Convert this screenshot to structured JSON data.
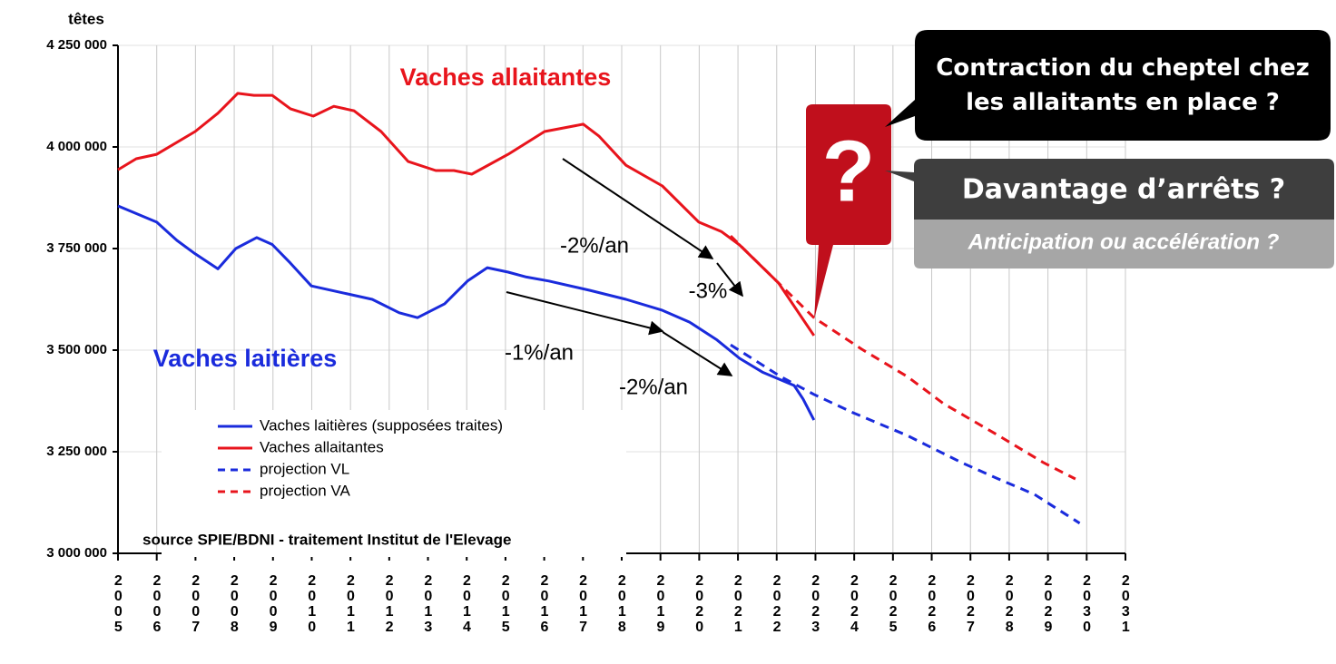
{
  "chart_data": {
    "type": "line",
    "y_axis_label": "têtes",
    "xlim": [
      2005,
      2031
    ],
    "xticks": [
      2005,
      2006,
      2007,
      2008,
      2009,
      2010,
      2011,
      2012,
      2013,
      2014,
      2015,
      2016,
      2017,
      2018,
      2019,
      2020,
      2021,
      2022,
      2023,
      2024,
      2025,
      2026,
      2027,
      2028,
      2029,
      2030,
      2031
    ],
    "ylim": [
      3000000,
      4250000
    ],
    "yticks": [
      {
        "value": 3000000,
        "label": "3 000 000"
      },
      {
        "value": 3250000,
        "label": "3 250 000"
      },
      {
        "value": 3500000,
        "label": "3 500 000"
      },
      {
        "value": 3750000,
        "label": "3 750 000"
      },
      {
        "value": 4000000,
        "label": "4 000 000"
      },
      {
        "value": 4250000,
        "label": "4 250 000"
      }
    ],
    "grid": true,
    "legend": "lower left",
    "series": [
      {
        "name": "Vaches laitières (supposées traites)",
        "color": "#1a2bdc",
        "dashed": false,
        "x": [
          2005,
          2006.0,
          2006.52,
          2006.99,
          2007.58,
          2008.04,
          2008.58,
          2008.98,
          2009.45,
          2009.99,
          2010.85,
          2011.56,
          2012.26,
          2012.73,
          2013.43,
          2014.02,
          2014.53,
          2015.07,
          2015.54,
          2016.12,
          2017.18,
          2018.11,
          2019.05,
          2019.75,
          2020.46,
          2021.04,
          2021.63,
          2022.45,
          2022.68,
          2022.96
        ],
        "values": [
          3855000,
          3815000,
          3770000,
          3737000,
          3700000,
          3750000,
          3777000,
          3760000,
          3714000,
          3658000,
          3640000,
          3625000,
          3592000,
          3580000,
          3614000,
          3670000,
          3703000,
          3692000,
          3680000,
          3670000,
          3647000,
          3625000,
          3598000,
          3569000,
          3525000,
          3480000,
          3446000,
          3413000,
          3380000,
          3328000
        ]
      },
      {
        "name": "Vaches allaitantes",
        "color": "#e8141c",
        "dashed": false,
        "x": [
          2005,
          2005.47,
          2006.0,
          2006.99,
          2007.58,
          2008.09,
          2008.51,
          2008.98,
          2009.45,
          2010.04,
          2010.57,
          2011.09,
          2011.79,
          2012.49,
          2013.2,
          2013.67,
          2014.13,
          2015.07,
          2016.01,
          2017.01,
          2017.41,
          2018.11,
          2019.05,
          2019.99,
          2020.57,
          2021.04,
          2022.05,
          2022.96
        ],
        "values": [
          3944000,
          3971000,
          3982000,
          4038000,
          4083000,
          4132000,
          4127000,
          4127000,
          4094000,
          4076000,
          4100000,
          4089000,
          4038000,
          3964000,
          3942000,
          3942000,
          3933000,
          3982000,
          4038000,
          4056000,
          4027000,
          3955000,
          3904000,
          3815000,
          3792000,
          3759000,
          3665000,
          3536000
        ]
      },
      {
        "name": "projection VL",
        "color": "#1a2bdc",
        "dashed": true,
        "x": [
          2020.81,
          2022.1,
          2022.96,
          2023.97,
          2025.37,
          2026.78,
          2027.72,
          2028.65,
          2029.82
        ],
        "values": [
          3513000,
          3435000,
          3391000,
          3346000,
          3290000,
          3223000,
          3183000,
          3145000,
          3074000
        ]
      },
      {
        "name": "projection VA",
        "color": "#e8141c",
        "dashed": true,
        "x": [
          2020.81,
          2022.05,
          2022.96,
          2024.2,
          2025.37,
          2026.31,
          2027.72,
          2028.89,
          2029.71
        ],
        "values": [
          3781000,
          3665000,
          3580000,
          3502000,
          3435000,
          3368000,
          3290000,
          3223000,
          3183000
        ]
      }
    ],
    "series_labels": [
      "Vaches allaitantes",
      "Vaches laitières"
    ],
    "trend_labels": [
      "-2%/an",
      "-3%",
      "-1%/an",
      "-2%/an"
    ],
    "source": "source SPIE/BDNI - traitement Institut de l'Elevage",
    "callouts": {
      "mark": "?",
      "top": "Contraction du cheptel chez les allaitants en place ?",
      "middle": "Davantage d’arrêts ?",
      "bottom": "Anticipation ou accélération ?"
    }
  }
}
